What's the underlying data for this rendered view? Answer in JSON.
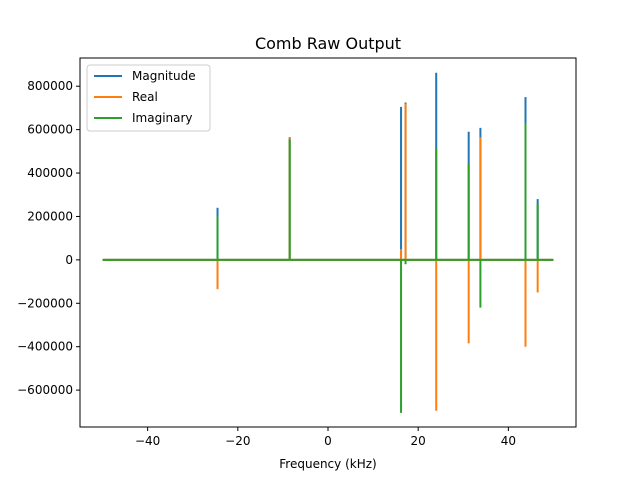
{
  "chart_data": {
    "type": "line",
    "title": "Comb Raw Output",
    "xlabel": "Frequency (kHz)",
    "ylabel": "",
    "xlim": [
      -55,
      55
    ],
    "ylim": [
      -770000,
      930000
    ],
    "xticks": [
      -40,
      -20,
      0,
      20,
      40
    ],
    "xtick_labels": [
      "−40",
      "−20",
      "0",
      "20",
      "40"
    ],
    "yticks": [
      -600000,
      -400000,
      -200000,
      0,
      200000,
      400000,
      600000,
      800000
    ],
    "ytick_labels": [
      "−600000",
      "−400000",
      "−200000",
      "0",
      "200000",
      "400000",
      "600000",
      "800000"
    ],
    "grid": false,
    "legend_position": "top-left",
    "baseline_x_range": [
      -50,
      50
    ],
    "series": [
      {
        "name": "Magnitude",
        "color": "#1f77b4",
        "spikes": [
          {
            "x": -24.5,
            "y": 240000
          },
          {
            "x": -8.5,
            "y": 565000
          },
          {
            "x": 16.2,
            "y": 705000
          },
          {
            "x": 17.2,
            "y": 725000
          },
          {
            "x": 24.0,
            "y": 862000
          },
          {
            "x": 31.2,
            "y": 590000
          },
          {
            "x": 33.8,
            "y": 608000
          },
          {
            "x": 43.8,
            "y": 750000
          },
          {
            "x": 46.5,
            "y": 280000
          }
        ]
      },
      {
        "name": "Real",
        "color": "#ff7f0e",
        "spikes": [
          {
            "x": -24.5,
            "y": -135000
          },
          {
            "x": -8.5,
            "y": 560000
          },
          {
            "x": 16.2,
            "y": 50000
          },
          {
            "x": 17.2,
            "y": 720000
          },
          {
            "x": 24.0,
            "y": -695000
          },
          {
            "x": 31.2,
            "y": -385000
          },
          {
            "x": 33.8,
            "y": 565000
          },
          {
            "x": 43.8,
            "y": -400000
          },
          {
            "x": 46.5,
            "y": -150000
          }
        ]
      },
      {
        "name": "Imaginary",
        "color": "#2ca02c",
        "spikes": [
          {
            "x": -24.5,
            "y": 200000
          },
          {
            "x": -8.5,
            "y": 555000
          },
          {
            "x": 16.2,
            "y": -705000
          },
          {
            "x": 17.2,
            "y": -20000
          },
          {
            "x": 24.0,
            "y": 515000
          },
          {
            "x": 31.2,
            "y": 445000
          },
          {
            "x": 33.8,
            "y": -220000
          },
          {
            "x": 43.8,
            "y": 630000
          },
          {
            "x": 46.5,
            "y": 260000
          }
        ]
      }
    ]
  }
}
